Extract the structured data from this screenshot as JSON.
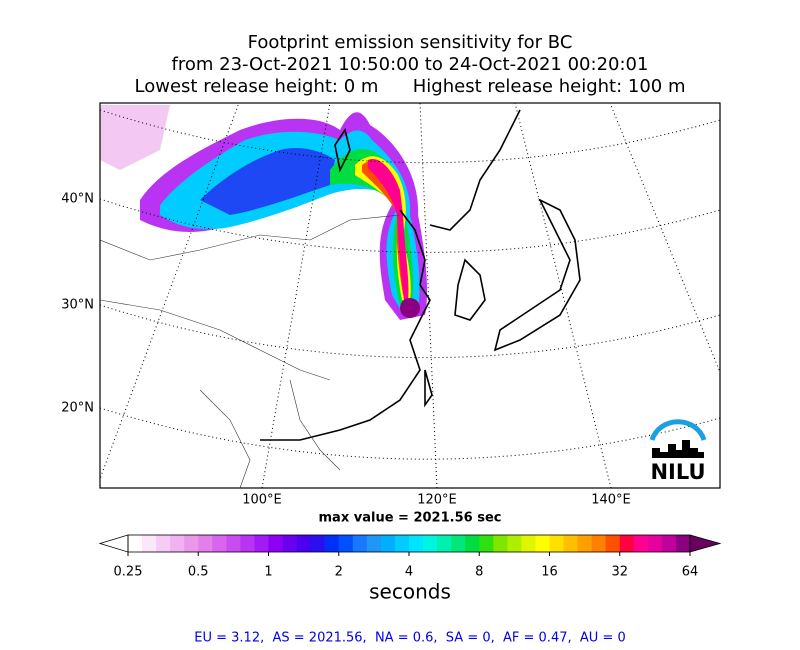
{
  "title": {
    "lines": [
      "Footprint emission sensitivity for BC",
      "from 23-Oct-2021 10:50:00 to 24-Oct-2021 00:20:01",
      "Lowest release height: 0 m      Highest release height: 100 m"
    ]
  },
  "map": {
    "lat_labels": [
      "40°N",
      "30°N",
      "20°N"
    ],
    "lon_labels": [
      "100°E",
      "120°E",
      "140°E"
    ],
    "max_value_text": "max value = 2021.56 sec",
    "logo": "NILU"
  },
  "colorbar": {
    "ticks": [
      0.25,
      0.5,
      1,
      2,
      4,
      8,
      16,
      32,
      64
    ],
    "lim": [
      0.25,
      64
    ],
    "log": true,
    "label": "seconds",
    "colors": [
      "#ffffff",
      "#fbe6fb",
      "#f6ccf6",
      "#f0b2f0",
      "#ea99ea",
      "#e27fe8",
      "#d866ec",
      "#c94cf0",
      "#b833f2",
      "#a31af5",
      "#8c00f5",
      "#6a00f0",
      "#4a00ee",
      "#2a10f0",
      "#0030f5",
      "#0050ff",
      "#1a78ff",
      "#2196f3",
      "#00b0ff",
      "#00ccff",
      "#00e5ff",
      "#00f5e0",
      "#00f0b0",
      "#00e87a",
      "#00dd40",
      "#30e010",
      "#80e600",
      "#b0ee00",
      "#e0f500",
      "#ffff00",
      "#ffe000",
      "#ffc000",
      "#ffa000",
      "#ff7f00",
      "#ff5000",
      "#ff0040",
      "#ff0090",
      "#e600a0",
      "#c0009a",
      "#8a0080"
    ],
    "over_color": "#6a0060",
    "under_color": "#ffffff"
  },
  "footer": "EU = 3.12,  AS = 2021.56,  NA = 0.6,  SA = 0,  AF = 0.47,  AU = 0"
}
